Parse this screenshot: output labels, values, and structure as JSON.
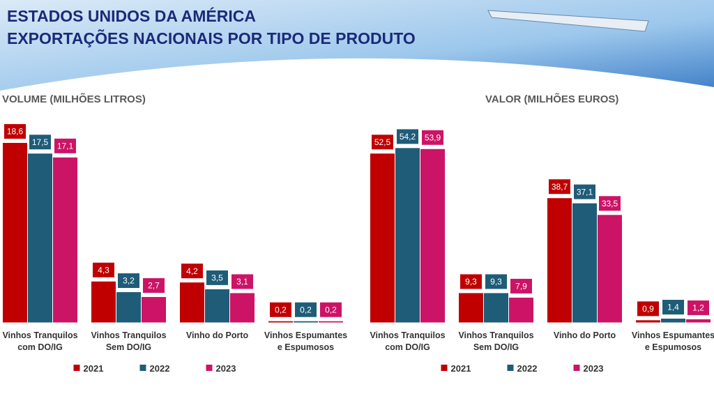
{
  "header": {
    "title_line1": "ESTADOS UNIDOS DA AMÉRICA",
    "title_line2": "EXPORTAÇÕES NACIONAIS POR TIPO DE PRODUTO"
  },
  "chart_data": [
    {
      "type": "bar",
      "title": "VOLUME (MILHÕES LITROS)",
      "categories": [
        "Vinhos Tranquilos com DO/IG",
        "Vinhos Tranquilos Sem DO/IG",
        "Vinho do Porto",
        "Vinhos Espumantes e Espumosos"
      ],
      "series": [
        {
          "name": "2021",
          "color": "#c00000",
          "values": [
            18.6,
            4.3,
            4.2,
            0.2
          ],
          "value_labels": [
            "18,6",
            "4,3",
            "4,2",
            "0,2"
          ]
        },
        {
          "name": "2022",
          "color": "#1f5c78",
          "values": [
            17.5,
            3.2,
            3.5,
            0.2
          ],
          "value_labels": [
            "17,5",
            "3,2",
            "3,5",
            "0,2"
          ]
        },
        {
          "name": "2023",
          "color": "#cc1466",
          "values": [
            17.1,
            2.7,
            3.1,
            0.2
          ],
          "value_labels": [
            "17,1",
            "2,7",
            "3,1",
            "0,2"
          ]
        }
      ],
      "ylim": [
        0,
        20
      ],
      "legend": "bottom"
    },
    {
      "type": "bar",
      "title": "VALOR (MILHÕES EUROS)",
      "categories": [
        "Vinhos Tranquilos com DO/IG",
        "Vinhos Tranquilos Sem DO/IG",
        "Vinho do Porto",
        "Vinhos Espumantes e Espumosos"
      ],
      "series": [
        {
          "name": "2021",
          "color": "#c00000",
          "values": [
            52.5,
            9.3,
            38.7,
            0.9
          ],
          "value_labels": [
            "52,5",
            "9,3",
            "38,7",
            "0,9"
          ]
        },
        {
          "name": "2022",
          "color": "#1f5c78",
          "values": [
            54.2,
            9.3,
            37.1,
            1.4
          ],
          "value_labels": [
            "54,2",
            "9,3",
            "37,1",
            "1,4"
          ]
        },
        {
          "name": "2023",
          "color": "#cc1466",
          "values": [
            53.9,
            7.9,
            33.5,
            1.2
          ],
          "value_labels": [
            "53,9",
            "7,9",
            "33,5",
            "1,2"
          ]
        }
      ],
      "ylim": [
        0,
        60
      ],
      "legend": "bottom"
    }
  ]
}
